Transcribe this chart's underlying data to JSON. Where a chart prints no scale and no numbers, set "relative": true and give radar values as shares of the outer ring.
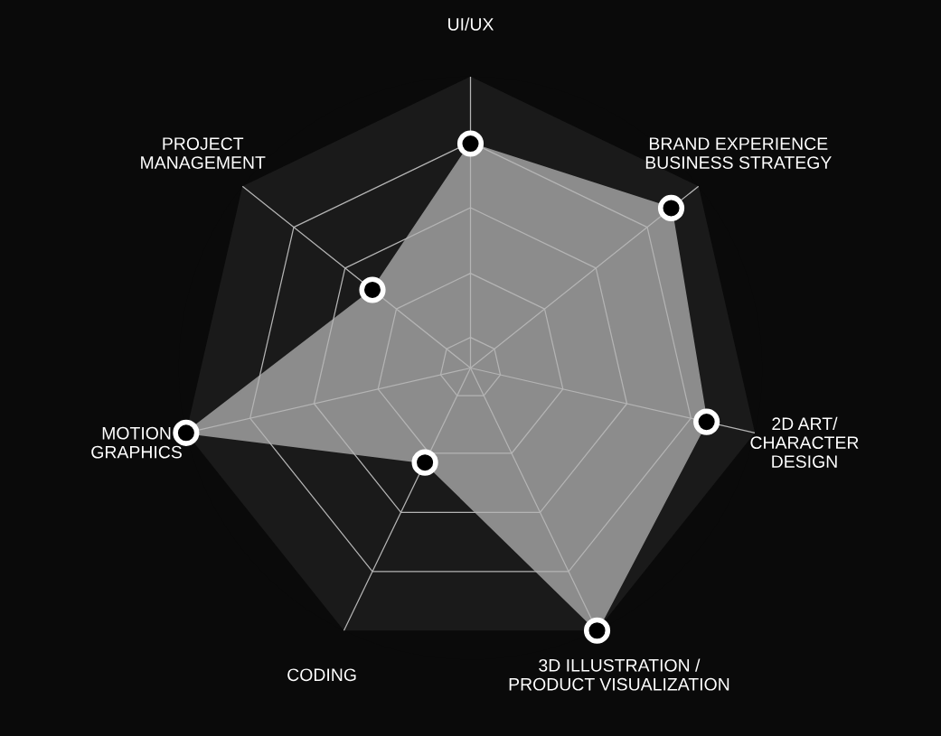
{
  "chart_data": {
    "type": "radar",
    "relative": true,
    "marker": "circle",
    "categories": [
      "UI/UX",
      "BRAND EXPERIENCE\nBUSINESS STRATEGY",
      "2D ART/\nCHARACTER\nDESIGN",
      "3D ILLUSTRATION /\nPRODUCT VISUALIZATION",
      "CODING",
      "MOTION\nGRAPHICS",
      "PROJECT\nMANAGEMENT"
    ],
    "series": [
      {
        "color": "#8c8c8c",
        "values": [
          0.77,
          0.88,
          0.83,
          1,
          0.36,
          1,
          0.43
        ]
      }
    ]
  }
}
